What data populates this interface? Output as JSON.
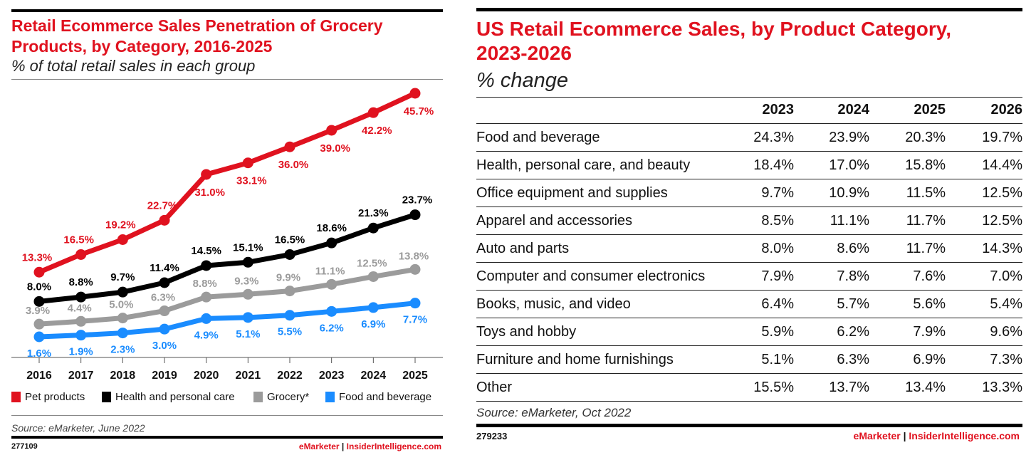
{
  "chart_data": [
    {
      "type": "line",
      "title": "Retail Ecommerce Sales Penetration of Grocery Products, by Category, 2016-2025",
      "subtitle": "% of total retail sales in each group",
      "x": [
        "2016",
        "2017",
        "2018",
        "2019",
        "2020",
        "2021",
        "2022",
        "2023",
        "2024",
        "2025"
      ],
      "series": [
        {
          "name": "Pet products",
          "color": "#e0121f",
          "values": [
            13.3,
            16.5,
            19.2,
            22.7,
            31.0,
            33.1,
            36.0,
            39.0,
            42.2,
            45.7
          ]
        },
        {
          "name": "Health and personal care",
          "color": "#000000",
          "values": [
            8.0,
            8.8,
            9.7,
            11.4,
            14.5,
            15.1,
            16.5,
            18.6,
            21.3,
            23.7
          ]
        },
        {
          "name": "Grocery*",
          "color": "#9b9b9b",
          "values": [
            3.9,
            4.4,
            5.0,
            6.3,
            8.8,
            9.3,
            9.9,
            11.1,
            12.5,
            13.8
          ]
        },
        {
          "name": "Food and beverage",
          "color": "#1a8cff",
          "values": [
            1.6,
            1.9,
            2.3,
            3.0,
            4.9,
            5.1,
            5.5,
            6.2,
            6.9,
            7.7
          ]
        }
      ],
      "ylim": [
        0,
        50
      ],
      "grid": false,
      "legend": "bottom",
      "source": "Source: eMarketer, June 2022",
      "chart_id": "277109",
      "footer_brand": "eMarketer",
      "footer_site": "InsiderIntelligence.com"
    },
    {
      "type": "table",
      "title": "US Retail Ecommerce Sales, by Product Category, 2023-2026",
      "title_lines": [
        "US Retail Ecommerce Sales, by Product Category,",
        "2023-2026"
      ],
      "subtitle": "% change",
      "columns": [
        "2023",
        "2024",
        "2025",
        "2026"
      ],
      "rows": [
        {
          "category": "Food and beverage",
          "values": [
            "24.3%",
            "23.9%",
            "20.3%",
            "19.7%"
          ]
        },
        {
          "category": "Health, personal care, and beauty",
          "values": [
            "18.4%",
            "17.0%",
            "15.8%",
            "14.4%"
          ]
        },
        {
          "category": "Office equipment and supplies",
          "values": [
            "9.7%",
            "10.9%",
            "11.5%",
            "12.5%"
          ]
        },
        {
          "category": "Apparel and accessories",
          "values": [
            "8.5%",
            "11.1%",
            "11.7%",
            "12.5%"
          ]
        },
        {
          "category": "Auto and parts",
          "values": [
            "8.0%",
            "8.6%",
            "11.7%",
            "14.3%"
          ]
        },
        {
          "category": "Computer and consumer electronics",
          "values": [
            "7.9%",
            "7.8%",
            "7.6%",
            "7.0%"
          ]
        },
        {
          "category": "Books, music, and video",
          "values": [
            "6.4%",
            "5.7%",
            "5.6%",
            "5.4%"
          ]
        },
        {
          "category": "Toys and hobby",
          "values": [
            "5.9%",
            "6.2%",
            "7.9%",
            "9.6%"
          ]
        },
        {
          "category": "Furniture and home furnishings",
          "values": [
            "5.1%",
            "6.3%",
            "6.9%",
            "7.3%"
          ]
        },
        {
          "category": "Other",
          "values": [
            "15.5%",
            "13.7%",
            "13.4%",
            "13.3%"
          ]
        }
      ],
      "source": "Source: eMarketer, Oct 2022",
      "chart_id": "279233",
      "footer_brand": "eMarketer",
      "footer_site": "InsiderIntelligence.com"
    }
  ]
}
